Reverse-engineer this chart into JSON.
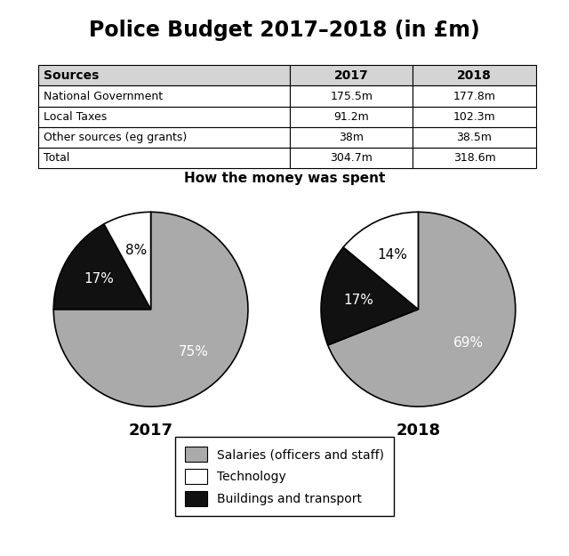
{
  "title": "Police Budget 2017–2018 (in £m)",
  "table": {
    "headers": [
      "Sources",
      "2017",
      "2018"
    ],
    "rows": [
      [
        "National Government",
        "175.5m",
        "177.8m"
      ],
      [
        "Local Taxes",
        "91.2m",
        "102.3m"
      ],
      [
        "Other sources (eg grants)",
        "38m",
        "38.5m"
      ],
      [
        "Total",
        "304.7m",
        "318.6m"
      ]
    ]
  },
  "pie_title": "How the money was spent",
  "pie_2017": {
    "label": "2017",
    "values": [
      75,
      17,
      8
    ],
    "labels": [
      "75%",
      "17%",
      "8%"
    ],
    "label_colors": [
      "white",
      "white",
      "black"
    ],
    "colors": [
      "#aaaaaa",
      "#111111",
      "#ffffff"
    ],
    "startangle": 90
  },
  "pie_2018": {
    "label": "2018",
    "values": [
      69,
      17,
      14
    ],
    "labels": [
      "69%",
      "17%",
      "14%"
    ],
    "label_colors": [
      "white",
      "white",
      "black"
    ],
    "colors": [
      "#aaaaaa",
      "#111111",
      "#ffffff"
    ],
    "startangle": 90
  },
  "legend_labels": [
    "Salaries (officers and staff)",
    "Technology",
    "Buildings and transport"
  ],
  "legend_colors": [
    "#aaaaaa",
    "#ffffff",
    "#111111"
  ],
  "bg_color": "#ffffff",
  "text_color": "#000000",
  "title_fontsize": 17,
  "pie_label_fontsize": 11,
  "pie_year_fontsize": 13,
  "pie_subtitle_fontsize": 11,
  "legend_fontsize": 10,
  "table_header_fontsize": 10,
  "table_cell_fontsize": 9
}
